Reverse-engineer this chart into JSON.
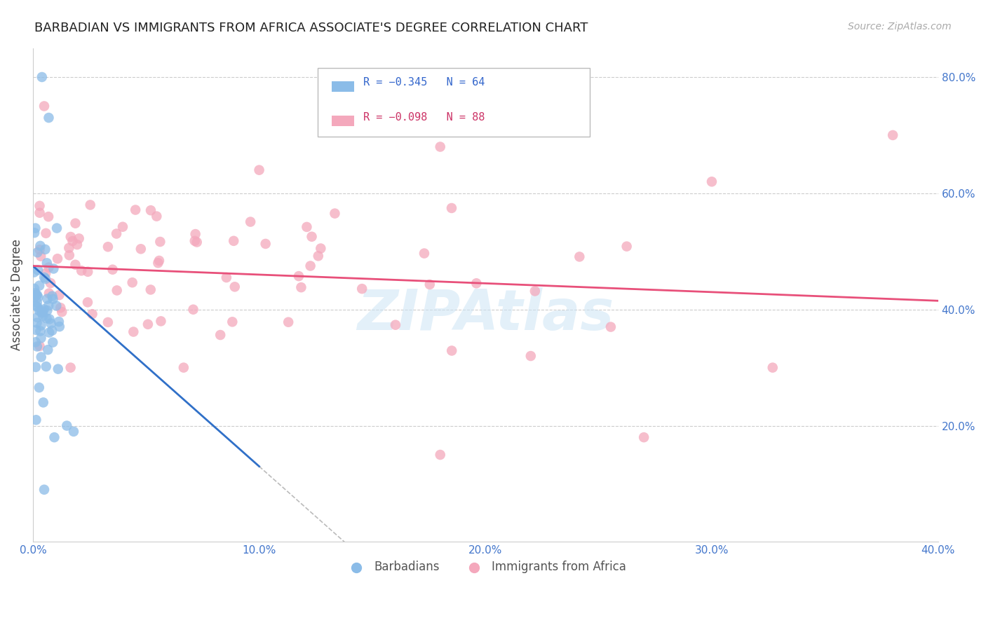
{
  "title": "BARBADIAN VS IMMIGRANTS FROM AFRICA ASSOCIATE'S DEGREE CORRELATION CHART",
  "source_text": "Source: ZipAtlas.com",
  "ylabel": "Associate's Degree",
  "right_ytick_labels": [
    "20.0%",
    "40.0%",
    "60.0%",
    "80.0%"
  ],
  "right_ytick_values": [
    0.2,
    0.4,
    0.6,
    0.8
  ],
  "xlim": [
    0.0,
    0.4
  ],
  "ylim": [
    0.0,
    0.85
  ],
  "xtick_labels": [
    "0.0%",
    "10.0%",
    "20.0%",
    "30.0%",
    "40.0%"
  ],
  "xtick_values": [
    0.0,
    0.1,
    0.2,
    0.3,
    0.4
  ],
  "grid_color": "#cccccc",
  "background_color": "#ffffff",
  "legend_r1": "R = −0.345",
  "legend_n1": "N = 64",
  "legend_r2": "R = −0.098",
  "legend_n2": "N = 88",
  "legend_labels": [
    "Barbadians",
    "Immigrants from Africa"
  ],
  "blue_scatter_color": "#8bbce8",
  "pink_scatter_color": "#f4a8bc",
  "blue_line_color": "#3070c8",
  "pink_line_color": "#e8507a",
  "watermark_text": "ZIPAtlas",
  "title_fontsize": 13,
  "source_fontsize": 10,
  "blue_seed": 42,
  "pink_seed": 99
}
